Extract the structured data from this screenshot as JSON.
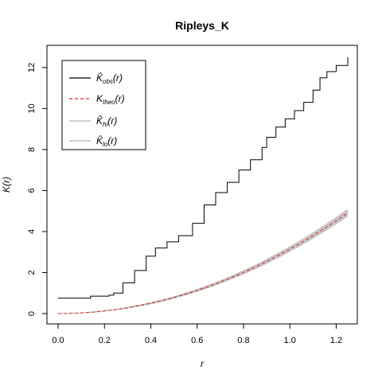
{
  "chart_data": {
    "type": "line",
    "title": "Ripleys_K",
    "xlabel": "r",
    "ylabel": "K(r)",
    "xlim": [
      0,
      1.25
    ],
    "ylim": [
      0,
      12.5
    ],
    "x_ticks": [
      "0.0",
      "0.2",
      "0.4",
      "0.6",
      "0.8",
      "1.0",
      "1.2"
    ],
    "y_ticks": [
      "0",
      "2",
      "4",
      "6",
      "8",
      "10",
      "12"
    ],
    "legend_position": "top-left",
    "series": [
      {
        "name": "K̂obs(r)",
        "name_main": "K̂",
        "name_sub": "obs",
        "name_suffix": "(r)",
        "color": "#000000",
        "dash": "solid",
        "x": [
          0,
          0.1,
          0.14,
          0.22,
          0.24,
          0.28,
          0.33,
          0.38,
          0.42,
          0.47,
          0.52,
          0.58,
          0.63,
          0.68,
          0.73,
          0.78,
          0.83,
          0.88,
          0.9,
          0.94,
          0.98,
          1.02,
          1.06,
          1.1,
          1.13,
          1.16,
          1.2,
          1.25
        ],
        "y": [
          0.75,
          0.75,
          0.85,
          0.9,
          1.0,
          1.5,
          2.1,
          2.8,
          3.2,
          3.5,
          3.8,
          4.4,
          5.3,
          5.9,
          6.4,
          7.0,
          7.5,
          8.1,
          8.6,
          9.1,
          9.5,
          9.9,
          10.3,
          10.9,
          11.5,
          11.8,
          12.1,
          12.5
        ]
      },
      {
        "name": "Ktheo(r)",
        "name_main": "K",
        "name_sub": "theo",
        "name_suffix": "(r)",
        "color": "#dd2222",
        "dash": "dashed",
        "x": [
          0,
          0.05,
          0.1,
          0.15,
          0.2,
          0.25,
          0.3,
          0.35,
          0.4,
          0.45,
          0.5,
          0.55,
          0.6,
          0.65,
          0.7,
          0.75,
          0.8,
          0.85,
          0.9,
          0.95,
          1.0,
          1.05,
          1.1,
          1.15,
          1.2,
          1.25
        ],
        "y": [
          0,
          0.008,
          0.031,
          0.071,
          0.126,
          0.196,
          0.283,
          0.385,
          0.503,
          0.636,
          0.785,
          0.95,
          1.131,
          1.327,
          1.539,
          1.767,
          2.011,
          2.27,
          2.545,
          2.835,
          3.142,
          3.464,
          3.801,
          4.155,
          4.524,
          4.909
        ]
      },
      {
        "name": "K̂hi(r)",
        "name_main": "K̂",
        "name_sub": "hi",
        "name_suffix": "(r)",
        "color": "#b3b3b3",
        "dash": "solid",
        "x": [
          0,
          0.05,
          0.1,
          0.15,
          0.2,
          0.25,
          0.3,
          0.35,
          0.4,
          0.45,
          0.5,
          0.55,
          0.6,
          0.65,
          0.7,
          0.75,
          0.8,
          0.85,
          0.9,
          0.95,
          1.0,
          1.05,
          1.1,
          1.15,
          1.2,
          1.25
        ],
        "y": [
          0,
          0.01,
          0.035,
          0.078,
          0.136,
          0.21,
          0.301,
          0.408,
          0.531,
          0.669,
          0.824,
          0.995,
          1.181,
          1.384,
          1.603,
          1.837,
          2.088,
          2.356,
          2.64,
          2.94,
          3.256,
          3.589,
          3.938,
          4.304,
          4.686,
          5.085
        ]
      },
      {
        "name": "K̂lo(r)",
        "name_main": "K̂",
        "name_sub": "lo",
        "name_suffix": "(r)",
        "color": "#b3b3b3",
        "dash": "solid",
        "x": [
          0,
          0.05,
          0.1,
          0.15,
          0.2,
          0.25,
          0.3,
          0.35,
          0.4,
          0.45,
          0.5,
          0.55,
          0.6,
          0.65,
          0.7,
          0.75,
          0.8,
          0.85,
          0.9,
          0.95,
          1.0,
          1.05,
          1.1,
          1.15,
          1.2,
          1.25
        ],
        "y": [
          0,
          0.006,
          0.027,
          0.064,
          0.116,
          0.183,
          0.266,
          0.364,
          0.476,
          0.604,
          0.748,
          0.906,
          1.08,
          1.27,
          1.474,
          1.696,
          1.932,
          2.185,
          2.452,
          2.735,
          3.033,
          3.347,
          3.676,
          4.02,
          4.381,
          4.756
        ]
      }
    ]
  }
}
